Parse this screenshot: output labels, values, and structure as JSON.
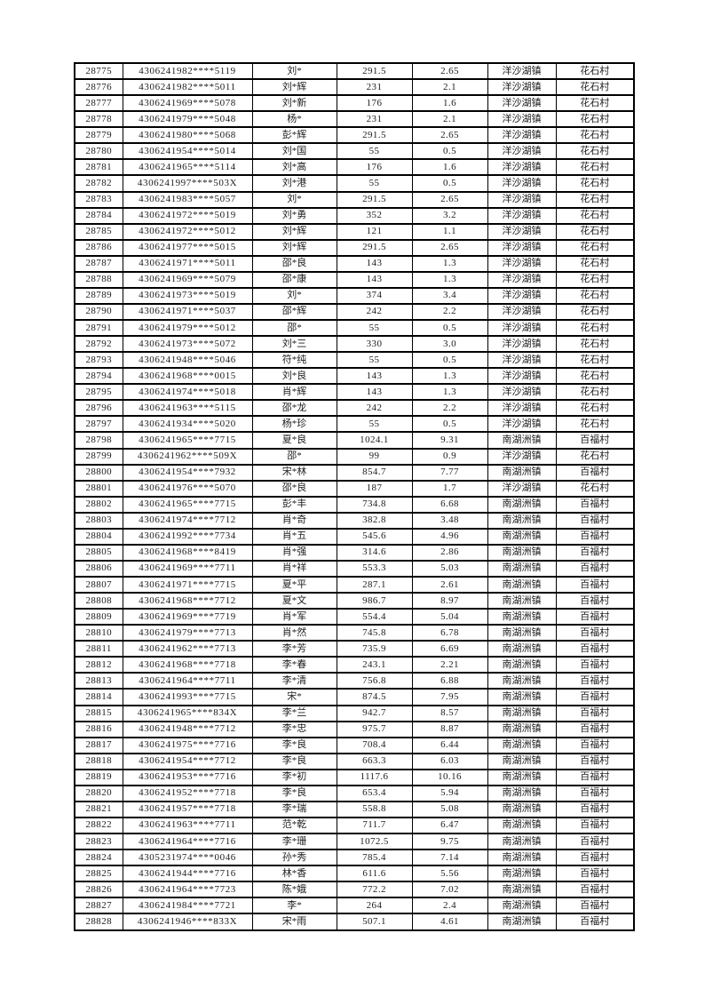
{
  "page": {
    "background": "#ffffff",
    "grid_color": "#000000",
    "text_color": "#1c1c1c"
  },
  "table": {
    "rows": [
      [
        "28775",
        "4306241982****5119",
        "刘*",
        "291.5",
        "2.65",
        "洋沙湖镇",
        "花石村"
      ],
      [
        "28776",
        "4306241982****5011",
        "刘*辉",
        "231",
        "2.1",
        "洋沙湖镇",
        "花石村"
      ],
      [
        "28777",
        "4306241969****5078",
        "刘*新",
        "176",
        "1.6",
        "洋沙湖镇",
        "花石村"
      ],
      [
        "28778",
        "4306241979****5048",
        "杨*",
        "231",
        "2.1",
        "洋沙湖镇",
        "花石村"
      ],
      [
        "28779",
        "4306241980****5068",
        "彭*辉",
        "291.5",
        "2.65",
        "洋沙湖镇",
        "花石村"
      ],
      [
        "28780",
        "4306241954****5014",
        "刘*国",
        "55",
        "0.5",
        "洋沙湖镇",
        "花石村"
      ],
      [
        "28781",
        "4306241965****5114",
        "刘*高",
        "176",
        "1.6",
        "洋沙湖镇",
        "花石村"
      ],
      [
        "28782",
        "4306241997****503X",
        "刘*港",
        "55",
        "0.5",
        "洋沙湖镇",
        "花石村"
      ],
      [
        "28783",
        "4306241983****5057",
        "刘*",
        "291.5",
        "2.65",
        "洋沙湖镇",
        "花石村"
      ],
      [
        "28784",
        "4306241972****5019",
        "刘*勇",
        "352",
        "3.2",
        "洋沙湖镇",
        "花石村"
      ],
      [
        "28785",
        "4306241972****5012",
        "刘*辉",
        "121",
        "1.1",
        "洋沙湖镇",
        "花石村"
      ],
      [
        "28786",
        "4306241977****5015",
        "刘*辉",
        "291.5",
        "2.65",
        "洋沙湖镇",
        "花石村"
      ],
      [
        "28787",
        "4306241971****5011",
        "邵*良",
        "143",
        "1.3",
        "洋沙湖镇",
        "花石村"
      ],
      [
        "28788",
        "4306241969****5079",
        "邵*康",
        "143",
        "1.3",
        "洋沙湖镇",
        "花石村"
      ],
      [
        "28789",
        "4306241973****5019",
        "刘*",
        "374",
        "3.4",
        "洋沙湖镇",
        "花石村"
      ],
      [
        "28790",
        "4306241971****5037",
        "邵*辉",
        "242",
        "2.2",
        "洋沙湖镇",
        "花石村"
      ],
      [
        "28791",
        "4306241979****5012",
        "邵*",
        "55",
        "0.5",
        "洋沙湖镇",
        "花石村"
      ],
      [
        "28792",
        "4306241973****5072",
        "刘*三",
        "330",
        "3.0",
        "洋沙湖镇",
        "花石村"
      ],
      [
        "28793",
        "4306241948****5046",
        "符*纯",
        "55",
        "0.5",
        "洋沙湖镇",
        "花石村"
      ],
      [
        "28794",
        "4306241968****0015",
        "刘*良",
        "143",
        "1.3",
        "洋沙湖镇",
        "花石村"
      ],
      [
        "28795",
        "4306241974****5018",
        "肖*辉",
        "143",
        "1.3",
        "洋沙湖镇",
        "花石村"
      ],
      [
        "28796",
        "4306241963****5115",
        "邵*龙",
        "242",
        "2.2",
        "洋沙湖镇",
        "花石村"
      ],
      [
        "28797",
        "4306241934****5020",
        "杨*珍",
        "55",
        "0.5",
        "洋沙湖镇",
        "花石村"
      ],
      [
        "28798",
        "4306241965****7715",
        "夏*良",
        "1024.1",
        "9.31",
        "南湖洲镇",
        "百福村"
      ],
      [
        "28799",
        "4306241962****509X",
        "邵*",
        "99",
        "0.9",
        "洋沙湖镇",
        "花石村"
      ],
      [
        "28800",
        "4306241954****7932",
        "宋*林",
        "854.7",
        "7.77",
        "南湖洲镇",
        "百福村"
      ],
      [
        "28801",
        "4306241976****5070",
        "邵*良",
        "187",
        "1.7",
        "洋沙湖镇",
        "花石村"
      ],
      [
        "28802",
        "4306241965****7715",
        "彭*丰",
        "734.8",
        "6.68",
        "南湖洲镇",
        "百福村"
      ],
      [
        "28803",
        "4306241974****7712",
        "肖*奇",
        "382.8",
        "3.48",
        "南湖洲镇",
        "百福村"
      ],
      [
        "28804",
        "4306241992****7734",
        "肖*五",
        "545.6",
        "4.96",
        "南湖洲镇",
        "百福村"
      ],
      [
        "28805",
        "4306241968****8419",
        "肖*强",
        "314.6",
        "2.86",
        "南湖洲镇",
        "百福村"
      ],
      [
        "28806",
        "4306241969****7711",
        "肖*祥",
        "553.3",
        "5.03",
        "南湖洲镇",
        "百福村"
      ],
      [
        "28807",
        "4306241971****7715",
        "夏*平",
        "287.1",
        "2.61",
        "南湖洲镇",
        "百福村"
      ],
      [
        "28808",
        "4306241968****7712",
        "夏*文",
        "986.7",
        "8.97",
        "南湖洲镇",
        "百福村"
      ],
      [
        "28809",
        "4306241969****7719",
        "肖*军",
        "554.4",
        "5.04",
        "南湖洲镇",
        "百福村"
      ],
      [
        "28810",
        "4306241979****7713",
        "肖*然",
        "745.8",
        "6.78",
        "南湖洲镇",
        "百福村"
      ],
      [
        "28811",
        "4306241962****7713",
        "李*芳",
        "735.9",
        "6.69",
        "南湖洲镇",
        "百福村"
      ],
      [
        "28812",
        "4306241968****7718",
        "李*春",
        "243.1",
        "2.21",
        "南湖洲镇",
        "百福村"
      ],
      [
        "28813",
        "4306241964****7711",
        "李*清",
        "756.8",
        "6.88",
        "南湖洲镇",
        "百福村"
      ],
      [
        "28814",
        "4306241993****7715",
        "宋*",
        "874.5",
        "7.95",
        "南湖洲镇",
        "百福村"
      ],
      [
        "28815",
        "4306241965****834X",
        "李*兰",
        "942.7",
        "8.57",
        "南湖洲镇",
        "百福村"
      ],
      [
        "28816",
        "4306241948****7712",
        "李*忠",
        "975.7",
        "8.87",
        "南湖洲镇",
        "百福村"
      ],
      [
        "28817",
        "4306241975****7716",
        "李*良",
        "708.4",
        "6.44",
        "南湖洲镇",
        "百福村"
      ],
      [
        "28818",
        "4306241954****7712",
        "李*良",
        "663.3",
        "6.03",
        "南湖洲镇",
        "百福村"
      ],
      [
        "28819",
        "4306241953****7716",
        "李*初",
        "1117.6",
        "10.16",
        "南湖洲镇",
        "百福村"
      ],
      [
        "28820",
        "4306241952****7718",
        "李*良",
        "653.4",
        "5.94",
        "南湖洲镇",
        "百福村"
      ],
      [
        "28821",
        "4306241957****7718",
        "李*瑞",
        "558.8",
        "5.08",
        "南湖洲镇",
        "百福村"
      ],
      [
        "28822",
        "4306241963****7711",
        "范*乾",
        "711.7",
        "6.47",
        "南湖洲镇",
        "百福村"
      ],
      [
        "28823",
        "4306241964****7716",
        "李*珊",
        "1072.5",
        "9.75",
        "南湖洲镇",
        "百福村"
      ],
      [
        "28824",
        "4305231974****0046",
        "孙*秀",
        "785.4",
        "7.14",
        "南湖洲镇",
        "百福村"
      ],
      [
        "28825",
        "4306241944****7716",
        "林*香",
        "611.6",
        "5.56",
        "南湖洲镇",
        "百福村"
      ],
      [
        "28826",
        "4306241964****7723",
        "陈*娥",
        "772.2",
        "7.02",
        "南湖洲镇",
        "百福村"
      ],
      [
        "28827",
        "4306241984****7721",
        "李*",
        "264",
        "2.4",
        "南湖洲镇",
        "百福村"
      ],
      [
        "28828",
        "4306241946****833X",
        "宋*雨",
        "507.1",
        "4.61",
        "南湖洲镇",
        "百福村"
      ]
    ]
  }
}
